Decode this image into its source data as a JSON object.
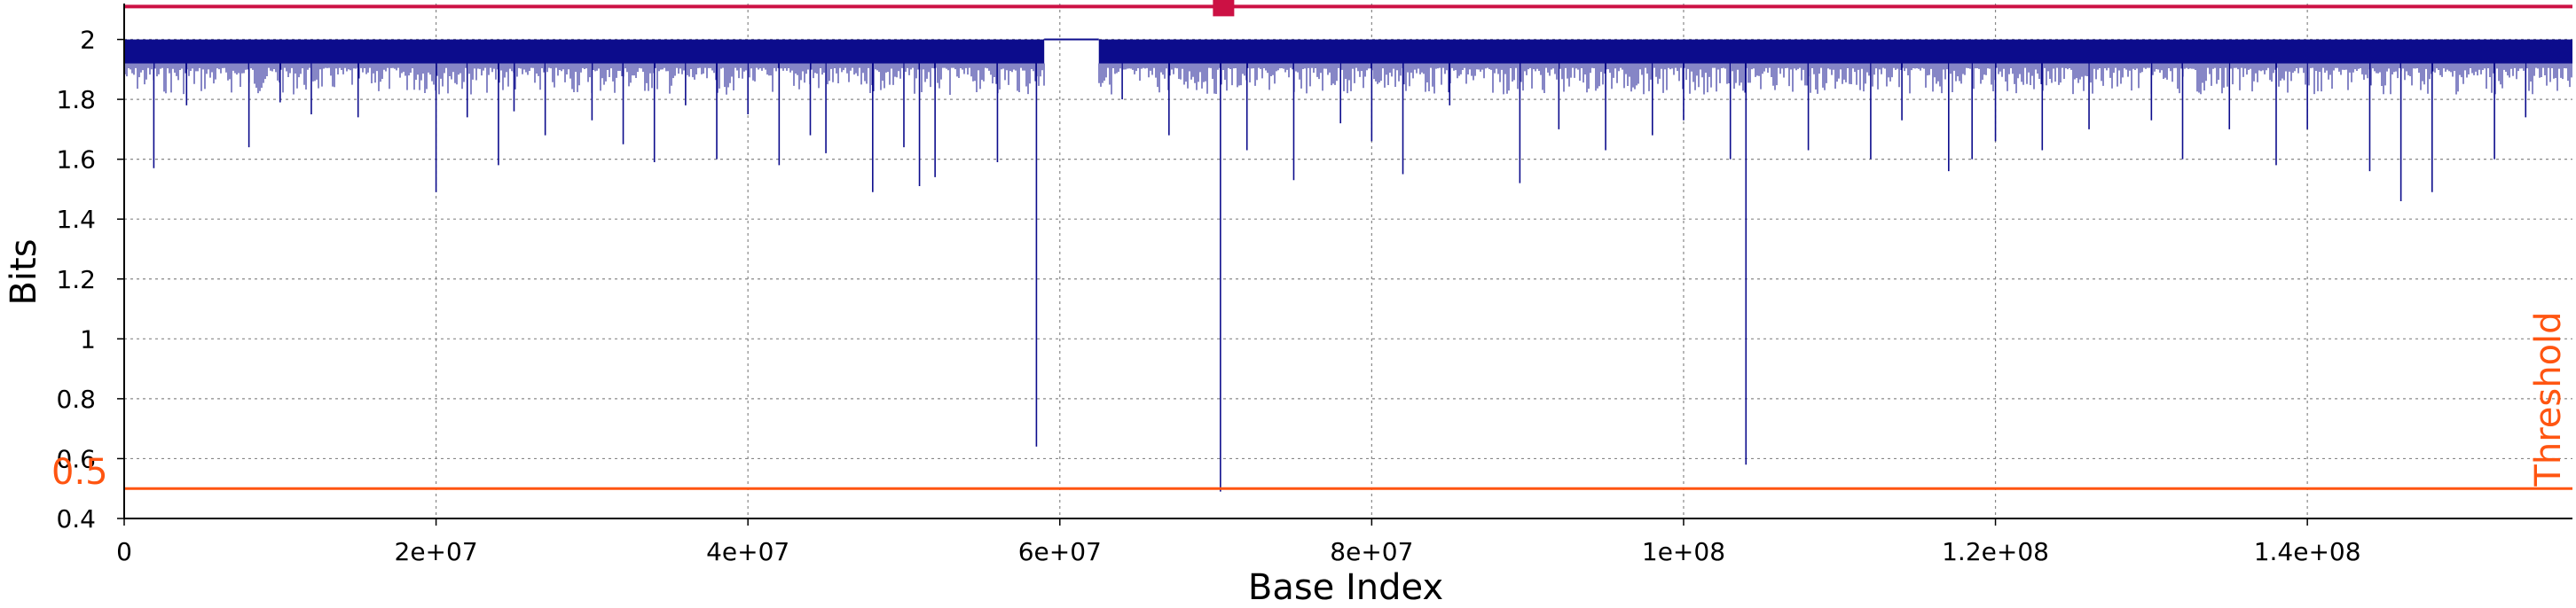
{
  "chart_data": {
    "type": "line",
    "title": "",
    "xlabel": "Base Index",
    "ylabel": "Bits",
    "xlim": [
      0,
      157000000
    ],
    "ylim": [
      0.4,
      2.12
    ],
    "grid": true,
    "x_ticks": [
      {
        "value": 0,
        "label": "0"
      },
      {
        "value": 20000000,
        "label": "2e+07"
      },
      {
        "value": 40000000,
        "label": "4e+07"
      },
      {
        "value": 60000000,
        "label": "6e+07"
      },
      {
        "value": 80000000,
        "label": "8e+07"
      },
      {
        "value": 100000000,
        "label": "1e+08"
      },
      {
        "value": 120000000,
        "label": "1.2e+08"
      },
      {
        "value": 140000000,
        "label": "1.4e+08"
      }
    ],
    "y_ticks": [
      {
        "value": 0.4,
        "label": "0.4"
      },
      {
        "value": 0.6,
        "label": "0.6"
      },
      {
        "value": 0.8,
        "label": "0.8"
      },
      {
        "value": 1.0,
        "label": "1"
      },
      {
        "value": 1.2,
        "label": "1.2"
      },
      {
        "value": 1.4,
        "label": "1.4"
      },
      {
        "value": 1.6,
        "label": "1.6"
      },
      {
        "value": 1.8,
        "label": "1.8"
      },
      {
        "value": 2.0,
        "label": "2"
      }
    ],
    "series": [
      {
        "color": "#0c0c8c",
        "baseline": 2.0,
        "band": {
          "top": 2.0,
          "bottom": 1.92
        },
        "x": [
          1900000,
          4000000,
          8000000,
          10000000,
          12000000,
          15000000,
          20000000,
          22000000,
          24000000,
          25000000,
          27000000,
          30000000,
          32000000,
          34000000,
          36000000,
          38000000,
          40000000,
          42000000,
          44000000,
          45000000,
          48000000,
          50000000,
          51000000,
          52000000,
          56000000,
          58500000,
          64000000,
          67000000,
          70300000,
          72000000,
          75000000,
          78000000,
          80000000,
          82000000,
          85000000,
          89500000,
          92000000,
          95000000,
          98000000,
          100000000,
          103000000,
          104000000,
          108000000,
          112000000,
          114000000,
          117000000,
          118500000,
          120000000,
          123000000,
          126000000,
          130000000,
          132000000,
          135000000,
          138000000,
          140000000,
          144000000,
          146000000,
          148000000,
          152000000,
          154000000
        ],
        "y": [
          1.57,
          1.78,
          1.64,
          1.79,
          1.75,
          1.74,
          1.49,
          1.74,
          1.58,
          1.76,
          1.68,
          1.73,
          1.65,
          1.59,
          1.78,
          1.6,
          1.75,
          1.58,
          1.68,
          1.62,
          1.49,
          1.64,
          1.51,
          1.54,
          1.59,
          0.64,
          1.8,
          1.68,
          0.49,
          1.63,
          1.53,
          1.72,
          1.66,
          1.55,
          1.78,
          1.52,
          1.7,
          1.63,
          1.68,
          1.73,
          1.6,
          0.58,
          1.63,
          1.6,
          1.73,
          1.56,
          1.6,
          1.66,
          1.63,
          1.7,
          1.73,
          1.6,
          1.7,
          1.58,
          1.7,
          1.56,
          1.46,
          1.49,
          1.6,
          1.74
        ]
      }
    ],
    "annotations": {
      "top_line": {
        "y": 2.11,
        "color": "#cc1144"
      },
      "top_marker": {
        "x": 70500000,
        "y": 2.11,
        "color": "#cc1144"
      },
      "threshold": {
        "y": 0.5,
        "value_label": "0.5",
        "label": "Threshold",
        "color": "#ff5511"
      }
    },
    "gap": {
      "x_start": 59000000,
      "x_end": 62500000
    }
  }
}
